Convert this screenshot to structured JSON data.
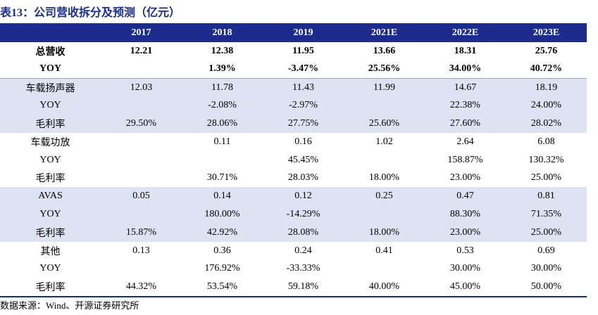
{
  "title": "表13：公司营收拆分及预测（亿元）",
  "columns": [
    "",
    "2017",
    "2018",
    "2019",
    "2021E",
    "2022E",
    "2023E"
  ],
  "rows": [
    {
      "label": "总营收",
      "values": [
        "12.21",
        "12.38",
        "11.95",
        "13.66",
        "18.31",
        "25.76"
      ]
    },
    {
      "label": "YOY",
      "values": [
        "",
        "1.39%",
        "-3.47%",
        "25.56%",
        "34.00%",
        "40.72%"
      ]
    },
    {
      "label": "车载扬声器",
      "values": [
        "12.03",
        "11.78",
        "11.43",
        "11.99",
        "14.67",
        "18.19"
      ]
    },
    {
      "label": "YOY",
      "values": [
        "",
        "-2.08%",
        "-2.97%",
        "",
        "22.38%",
        "24.00%"
      ]
    },
    {
      "label": "毛利率",
      "values": [
        "29.50%",
        "28.06%",
        "27.75%",
        "25.60%",
        "27.60%",
        "28.02%"
      ]
    },
    {
      "label": "车载功放",
      "values": [
        "",
        "0.11",
        "0.16",
        "1.02",
        "2.64",
        "6.08"
      ]
    },
    {
      "label": "YOY",
      "values": [
        "",
        "",
        "45.45%",
        "",
        "158.87%",
        "130.32%"
      ]
    },
    {
      "label": "毛利率",
      "values": [
        "",
        "30.71%",
        "28.03%",
        "18.00%",
        "23.00%",
        "25.00%"
      ]
    },
    {
      "label": "AVAS",
      "values": [
        "0.05",
        "0.14",
        "0.12",
        "0.25",
        "0.47",
        "0.81"
      ]
    },
    {
      "label": "YOY",
      "values": [
        "",
        "180.00%",
        "-14.29%",
        "",
        "88.30%",
        "71.35%"
      ]
    },
    {
      "label": "毛利率",
      "values": [
        "15.87%",
        "42.92%",
        "28.08%",
        "18.00%",
        "23.00%",
        "25.00%"
      ]
    },
    {
      "label": "其他",
      "values": [
        "0.13",
        "0.36",
        "0.24",
        "0.41",
        "0.53",
        "0.69"
      ]
    },
    {
      "label": "YOY",
      "values": [
        "",
        "176.92%",
        "-33.33%",
        "",
        "30.00%",
        "30.00%"
      ]
    },
    {
      "label": "毛利率",
      "values": [
        "44.32%",
        "53.54%",
        "59.18%",
        "40.00%",
        "45.00%",
        "50.00%"
      ]
    }
  ],
  "source": "数据来源：Wind、开源证券研究所",
  "colors": {
    "header_bg": "#1d2c8c",
    "title": "#1a2e8a",
    "shaded_row": "#dde3f3"
  }
}
